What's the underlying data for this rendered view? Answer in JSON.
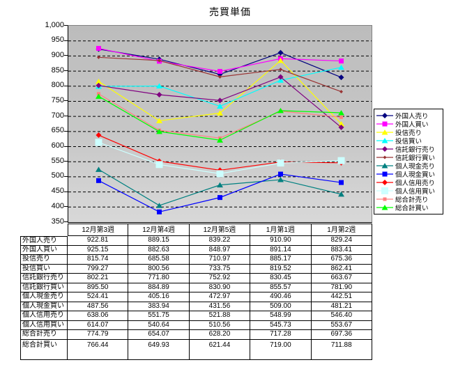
{
  "chart_data": {
    "type": "line",
    "title": "売買単価",
    "categories": [
      "12月第3週",
      "12月第4週",
      "12月第5週",
      "1月第1週",
      "1月第2週"
    ],
    "ylim": [
      350,
      1000
    ],
    "ytick_step": 50,
    "ytick_values": [
      1000,
      950,
      900,
      850,
      800,
      750,
      700,
      650,
      600,
      550,
      500,
      450,
      400,
      350
    ],
    "ytick_labels": [
      "1,000",
      "950",
      "900",
      "850",
      "800",
      "750",
      "700",
      "650",
      "600",
      "550",
      "500",
      "450",
      "400",
      "350"
    ],
    "grid": "horizontal-dashed",
    "legend_position": "right",
    "plot_background": "#c4c4c4",
    "value_decimals": 2,
    "series": [
      {
        "name": "外国人売り",
        "color": "#000080",
        "marker": "diamond",
        "values": [
          922.81,
          889.15,
          839.22,
          910.9,
          829.24
        ]
      },
      {
        "name": "外国人買い",
        "color": "#FF00FF",
        "marker": "square",
        "values": [
          925.15,
          882.63,
          848.97,
          891.14,
          883.41
        ]
      },
      {
        "name": "投信売り",
        "color": "#FFFF00",
        "marker": "triangle",
        "values": [
          815.74,
          685.58,
          710.97,
          885.17,
          675.36
        ]
      },
      {
        "name": "投信買い",
        "color": "#00FFFF",
        "marker": "triangle",
        "values": [
          799.27,
          800.56,
          733.75,
          819.52,
          862.41
        ]
      },
      {
        "name": "信託銀行売り",
        "color": "#800080",
        "marker": "diamond",
        "values": [
          802.21,
          771.8,
          752.92,
          830.45,
          663.67
        ]
      },
      {
        "name": "信託銀行買い",
        "color": "#993333",
        "marker": "diamond-small",
        "values": [
          895.5,
          884.89,
          830.9,
          855.57,
          781.9
        ]
      },
      {
        "name": "個人現金売り",
        "color": "#008080",
        "marker": "triangle",
        "values": [
          524.41,
          405.16,
          472.97,
          490.46,
          442.51
        ]
      },
      {
        "name": "個人現金買い",
        "color": "#0000FF",
        "marker": "square",
        "values": [
          487.56,
          383.94,
          431.56,
          509.0,
          481.21
        ]
      },
      {
        "name": "個人信用売り",
        "color": "#FF0000",
        "marker": "diamond",
        "values": [
          638.06,
          551.75,
          521.88,
          548.99,
          546.4
        ]
      },
      {
        "name": "個人信用買い",
        "color": "#CCFFFF",
        "marker": "square-large",
        "values": [
          614.07,
          540.64,
          510.56,
          545.73,
          553.67
        ]
      },
      {
        "name": "総合計売り",
        "color": "#FF8080",
        "marker": "square-small",
        "values": [
          774.79,
          654.07,
          628.2,
          717.28,
          697.36
        ]
      },
      {
        "name": "総合計買い",
        "color": "#00FF00",
        "marker": "triangle",
        "values": [
          766.44,
          649.93,
          621.44,
          719.0,
          711.88
        ]
      }
    ]
  }
}
